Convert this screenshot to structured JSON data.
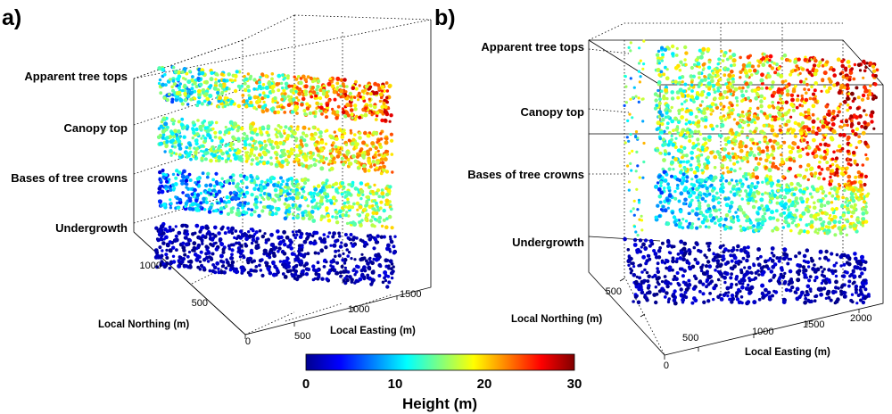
{
  "colors": {
    "colormap": "jet",
    "background": "#ffffff"
  },
  "chart_data": [
    {
      "panel": "a)",
      "type": "scatter3d",
      "layers": [
        {
          "label": "Apparent tree tops",
          "height_range_m": [
            5,
            28
          ]
        },
        {
          "label": "Canopy top",
          "height_range_m": [
            8,
            24
          ]
        },
        {
          "label": "Bases of tree crowns",
          "height_range_m": [
            2,
            20
          ]
        },
        {
          "label": "Undergrowth",
          "height_range_m": [
            0,
            3
          ]
        }
      ],
      "ylabel": "Local Northing (m)",
      "xlabel": "Local Easting (m)",
      "northing_ticks": [
        "1000",
        "500",
        "0"
      ],
      "easting_ticks": [
        "500",
        "1000",
        "1500"
      ],
      "clabel": "Height (m)",
      "clim": [
        0,
        30
      ]
    },
    {
      "panel": "b)",
      "type": "scatter3d",
      "layers": [
        {
          "label": "Apparent tree tops",
          "height_range_m": [
            8,
            30
          ]
        },
        {
          "label": "Canopy top",
          "height_range_m": [
            8,
            28
          ]
        },
        {
          "label": "Bases of tree crowns",
          "height_range_m": [
            5,
            20
          ]
        },
        {
          "label": "Undergrowth",
          "height_range_m": [
            0,
            3
          ]
        }
      ],
      "ylabel": "Local Northing (m)",
      "xlabel": "Local Easting (m)",
      "northing_ticks": [
        "500",
        "0"
      ],
      "easting_ticks": [
        "500",
        "1000",
        "1500",
        "2000"
      ],
      "clabel": "Height (m)",
      "clim": [
        0,
        30
      ]
    }
  ],
  "colorbar": {
    "ticks": [
      "0",
      "10",
      "20",
      "30"
    ],
    "label": "Height (m)"
  }
}
